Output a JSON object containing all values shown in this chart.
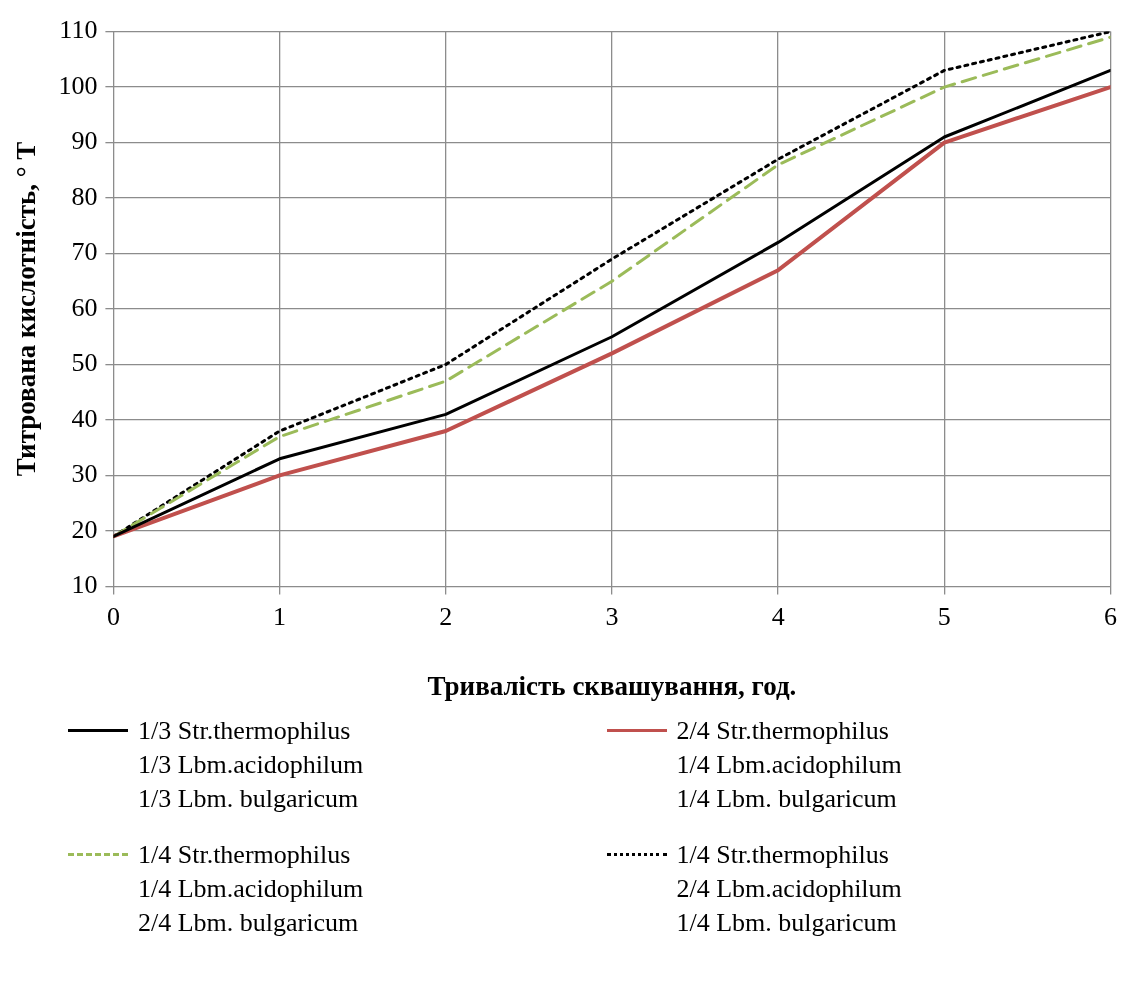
{
  "chart_data": {
    "type": "line",
    "xlabel": "Тривалість сквашування, год.",
    "ylabel": "Титрована кислотність, ° Т",
    "x": [
      0,
      1,
      2,
      3,
      4,
      5,
      6
    ],
    "xlim": [
      0,
      6
    ],
    "xticks": [
      0,
      1,
      2,
      3,
      4,
      5,
      6
    ],
    "ylim": [
      10,
      110
    ],
    "yticks": [
      10,
      20,
      30,
      40,
      50,
      60,
      70,
      80,
      90,
      100,
      110
    ],
    "grid": true,
    "legend": "bottom",
    "marker": "none",
    "series": [
      {
        "name": "1/3 Str.thermophilus\n1/3 Lbm.acidophilum\n1/3 Lbm. bulgaricum",
        "color": "#000000",
        "line_style": "solid",
        "values": [
          19,
          33,
          41,
          55,
          72,
          91,
          103
        ]
      },
      {
        "name": "2/4 Str.thermophilus\n1/4 Lbm.acidophilum\n1/4 Lbm. bulgaricum",
        "color": "#c0504d",
        "line_style": "solid",
        "values": [
          19,
          30,
          38,
          52,
          67,
          90,
          100
        ]
      },
      {
        "name": "1/4 Str.thermophilus\n1/4 Lbm.acidophilum\n2/4 Lbm. bulgaricum",
        "color": "#9bbb59",
        "line_style": "dashed",
        "values": [
          19,
          37,
          47,
          65,
          86,
          100,
          109
        ]
      },
      {
        "name": "1/4 Str.thermophilus\n2/4 Lbm.acidophilum\n1/4 Lbm. bulgaricum",
        "color": "#000000",
        "line_style": "dotted",
        "values": [
          19,
          38,
          50,
          69,
          87,
          103,
          110
        ]
      }
    ]
  }
}
